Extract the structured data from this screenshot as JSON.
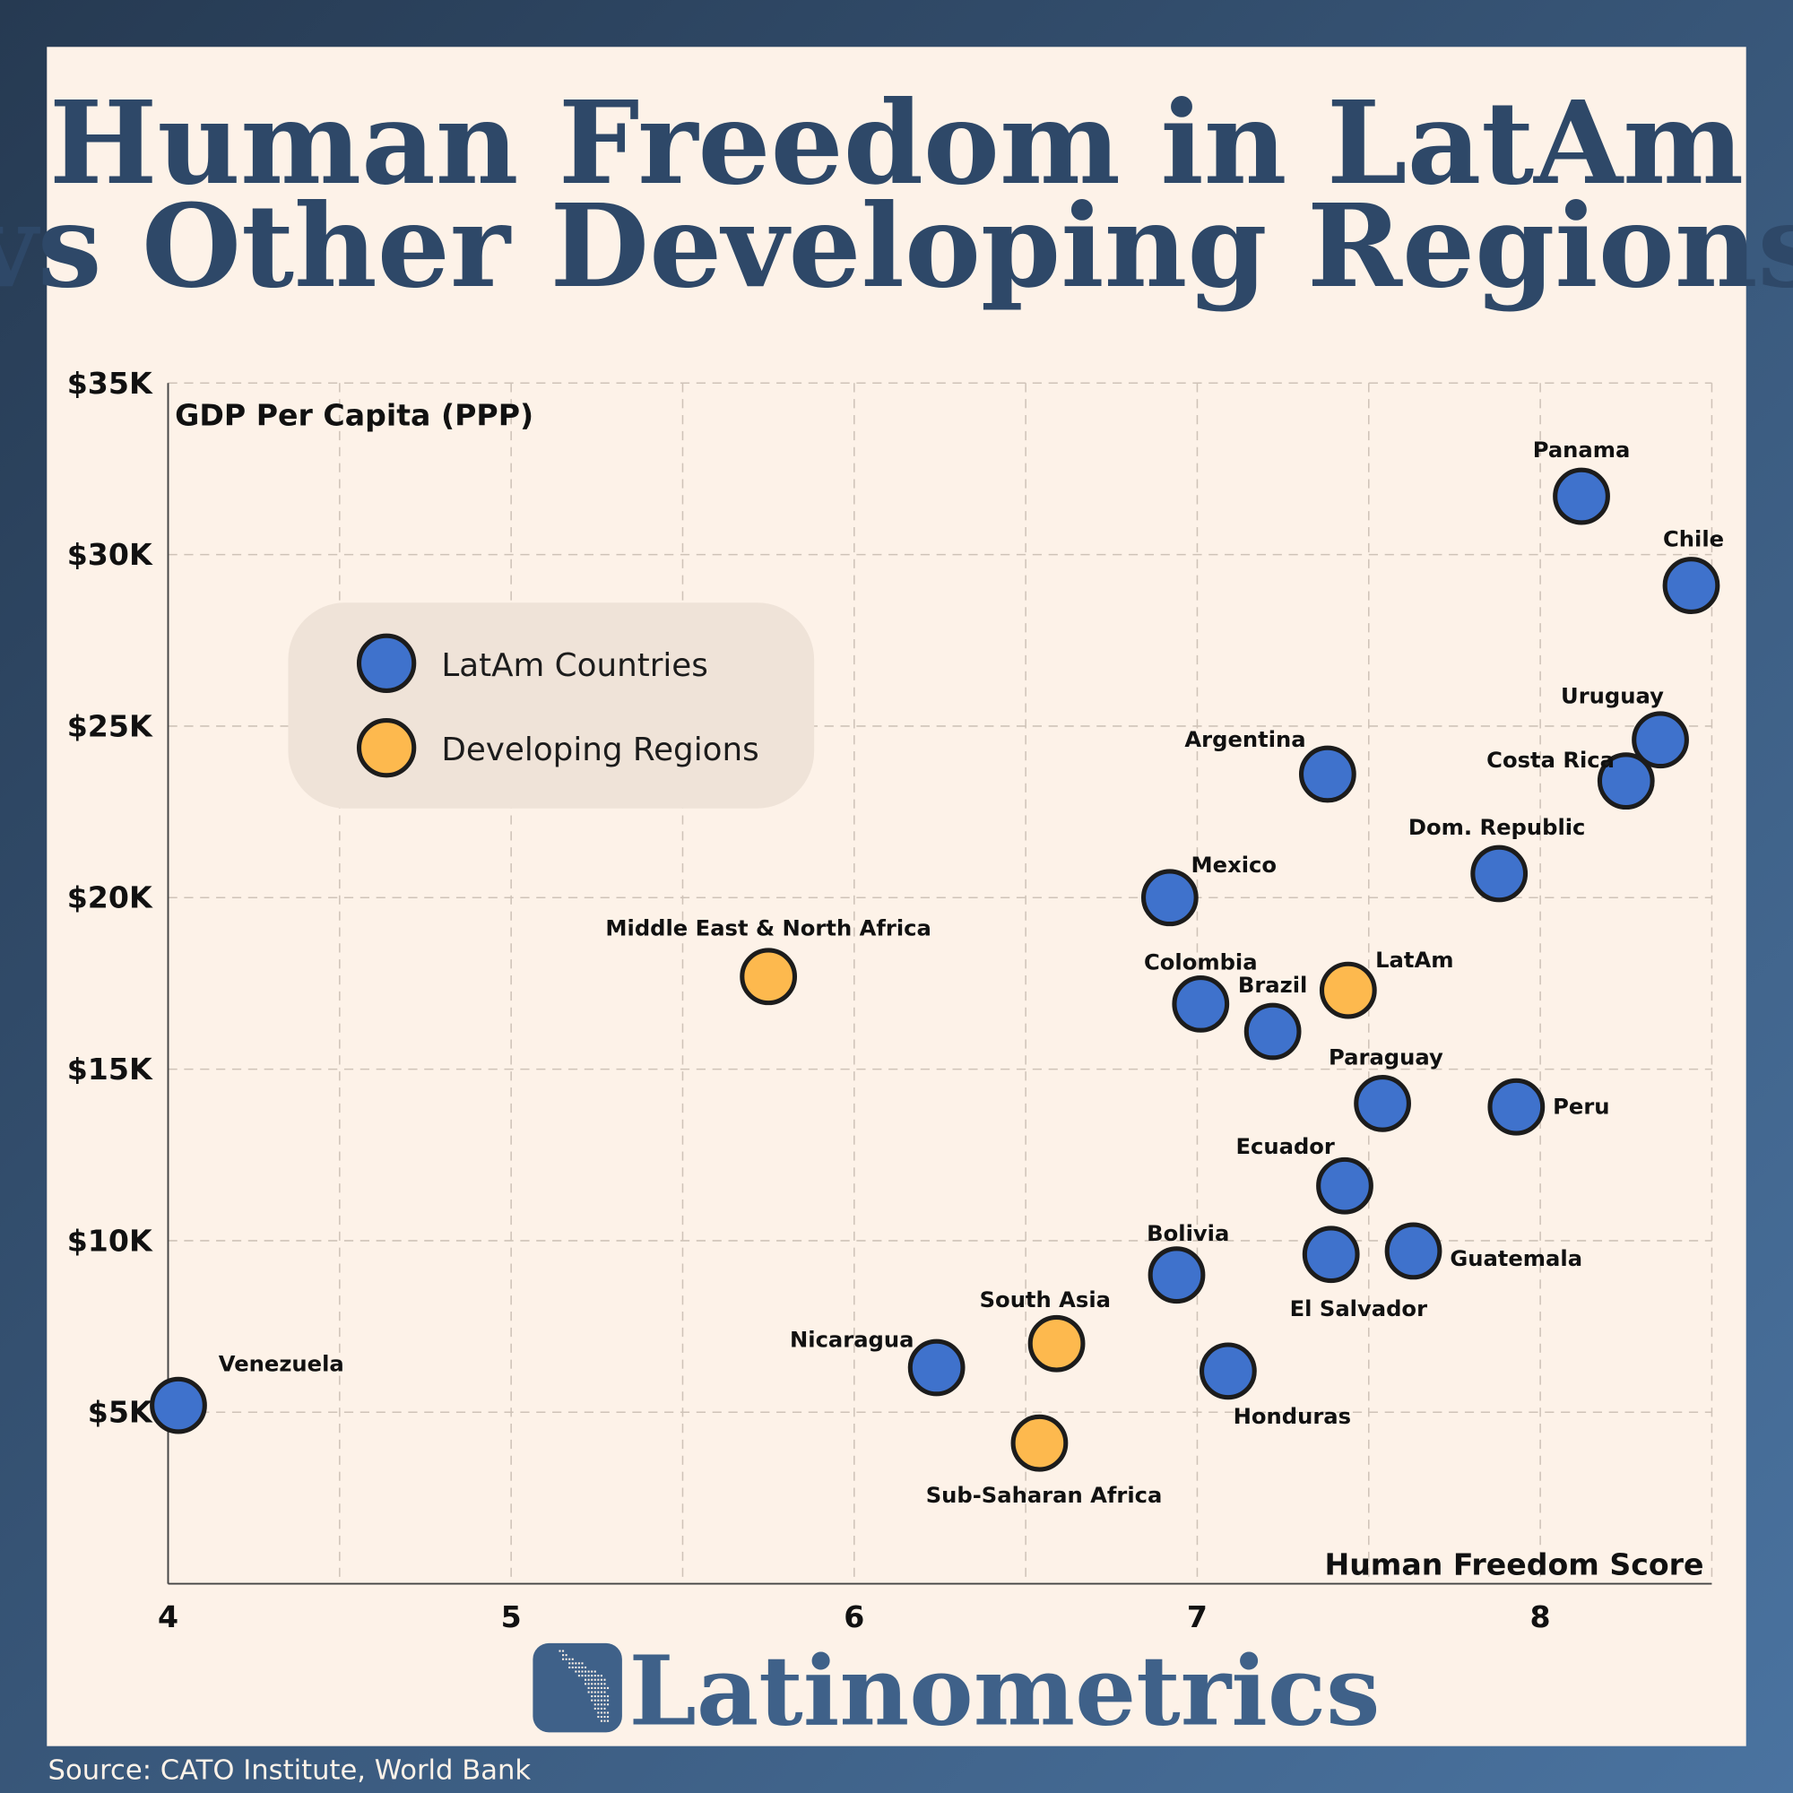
{
  "title_line1": "Human Freedom in LatAm",
  "title_line2": "vs Other Developing Regions",
  "source": "Source: CATO Institute, World Bank",
  "logo_text": "Latinometrics",
  "colors": {
    "latam": "#3f72cc",
    "regions": "#fdb94e",
    "title": "#2e4868",
    "background": "#fdf2e8",
    "frame": "#2f4a6a"
  },
  "chart_data": {
    "type": "scatter",
    "ylabel": "GDP Per Capita (PPP)",
    "xlabel": "Human Freedom Score",
    "xlim": [
      4,
      8.5
    ],
    "ylim": [
      0,
      35
    ],
    "grid": true,
    "x_ticks": [
      {
        "v": 4,
        "label": "4"
      },
      {
        "v": 5,
        "label": "5"
      },
      {
        "v": 6,
        "label": "6"
      },
      {
        "v": 7,
        "label": "7"
      },
      {
        "v": 8,
        "label": "8"
      }
    ],
    "y_ticks": [
      {
        "v": 5,
        "label": "$5K"
      },
      {
        "v": 10,
        "label": "$10K"
      },
      {
        "v": 15,
        "label": "$15K"
      },
      {
        "v": 20,
        "label": "$20K"
      },
      {
        "v": 25,
        "label": "$25K"
      },
      {
        "v": 30,
        "label": "$30K"
      },
      {
        "v": 35,
        "label": "$35K"
      }
    ],
    "y_unit": "thousand USD",
    "legend_placement": "upper-left",
    "series": [
      {
        "name": "LatAm Countries",
        "color": "#3f72cc",
        "points": [
          {
            "label": "Panama",
            "x": 8.12,
            "y": 31.7
          },
          {
            "label": "Chile",
            "x": 8.44,
            "y": 29.1
          },
          {
            "label": "Uruguay",
            "x": 8.35,
            "y": 24.6
          },
          {
            "label": "Costa Rica",
            "x": 8.25,
            "y": 23.4
          },
          {
            "label": "Argentina",
            "x": 7.38,
            "y": 23.6
          },
          {
            "label": "Dom. Republic",
            "x": 7.88,
            "y": 20.7
          },
          {
            "label": "Mexico",
            "x": 6.92,
            "y": 20.0
          },
          {
            "label": "Colombia",
            "x": 7.01,
            "y": 16.9
          },
          {
            "label": "Brazil",
            "x": 7.22,
            "y": 16.1
          },
          {
            "label": "Paraguay",
            "x": 7.54,
            "y": 14.0
          },
          {
            "label": "Peru",
            "x": 7.93,
            "y": 13.9
          },
          {
            "label": "Ecuador",
            "x": 7.43,
            "y": 11.6
          },
          {
            "label": "El Salvador",
            "x": 7.39,
            "y": 9.6
          },
          {
            "label": "Guatemala",
            "x": 7.63,
            "y": 9.7
          },
          {
            "label": "Bolivia",
            "x": 6.94,
            "y": 9.0
          },
          {
            "label": "Nicaragua",
            "x": 6.24,
            "y": 6.3
          },
          {
            "label": "Honduras",
            "x": 7.09,
            "y": 6.2
          },
          {
            "label": "Venezuela",
            "x": 4.03,
            "y": 5.2
          }
        ]
      },
      {
        "name": "Developing Regions",
        "color": "#fdb94e",
        "points": [
          {
            "label": "Middle East & North Africa",
            "x": 5.75,
            "y": 17.7
          },
          {
            "label": "LatAm",
            "x": 7.44,
            "y": 17.3
          },
          {
            "label": "South Asia",
            "x": 6.59,
            "y": 7.0
          },
          {
            "label": "Sub-Saharan Africa",
            "x": 6.54,
            "y": 4.1
          }
        ]
      }
    ]
  }
}
